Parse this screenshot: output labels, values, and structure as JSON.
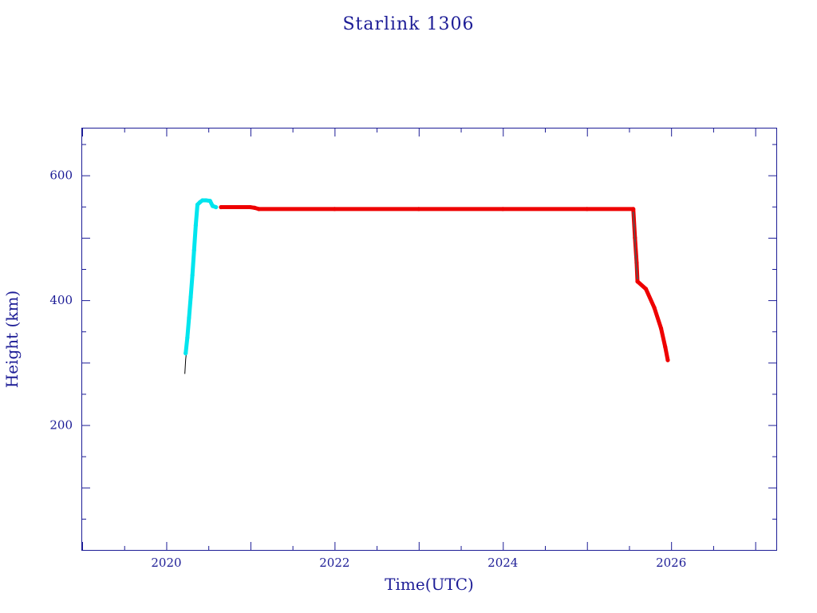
{
  "chart_data": {
    "type": "scatter",
    "title": "Starlink 1306",
    "xlabel": "Time(UTC)",
    "ylabel": "Height (km)",
    "xlim": [
      2019.0,
      2027.25
    ],
    "ylim": [
      0,
      675
    ],
    "x_ticks": [
      2020,
      2022,
      2024,
      2026
    ],
    "x_tick_labels": [
      "2020",
      "2022",
      "2024",
      "2026"
    ],
    "x_minor_step": 0.5,
    "y_ticks": [
      200,
      400,
      600
    ],
    "y_tick_labels": [
      "200",
      "400",
      "600"
    ],
    "y_minor_step": 50,
    "grid": false,
    "axis_color": "#1c1c96",
    "series": [
      {
        "color": "#000000",
        "style": "thin-line",
        "points": [
          [
            2020.22,
            282
          ],
          [
            2020.23,
            305
          ],
          [
            2020.25,
            330
          ]
        ]
      },
      {
        "color": "#00e5ee",
        "style": "markers",
        "points": [
          [
            2020.23,
            315
          ],
          [
            2020.25,
            340
          ],
          [
            2020.27,
            372
          ],
          [
            2020.29,
            405
          ],
          [
            2020.31,
            440
          ],
          [
            2020.33,
            480
          ],
          [
            2020.35,
            520
          ],
          [
            2020.37,
            553
          ],
          [
            2020.4,
            557
          ],
          [
            2020.43,
            560
          ],
          [
            2020.47,
            560
          ],
          [
            2020.52,
            559
          ],
          [
            2020.55,
            551
          ],
          [
            2020.59,
            549
          ]
        ]
      },
      {
        "color": "#ee0000",
        "style": "markers",
        "points": [
          [
            2020.65,
            549
          ],
          [
            2021.0,
            549
          ],
          [
            2021.05,
            548
          ],
          [
            2021.1,
            546
          ],
          [
            2022.0,
            546
          ],
          [
            2023.0,
            546
          ],
          [
            2024.0,
            546
          ],
          [
            2025.0,
            546
          ],
          [
            2025.55,
            546
          ],
          [
            2025.57,
            500
          ],
          [
            2025.59,
            460
          ],
          [
            2025.6,
            430
          ],
          [
            2025.7,
            418
          ],
          [
            2025.8,
            388
          ],
          [
            2025.88,
            355
          ],
          [
            2025.93,
            325
          ],
          [
            2025.96,
            304
          ]
        ]
      },
      {
        "color": "#555555",
        "style": "markers-small",
        "points": [
          [
            2025.55,
            540
          ],
          [
            2025.56,
            520
          ],
          [
            2025.57,
            495
          ],
          [
            2025.58,
            470
          ],
          [
            2025.59,
            450
          ],
          [
            2025.6,
            435
          ]
        ]
      }
    ]
  }
}
